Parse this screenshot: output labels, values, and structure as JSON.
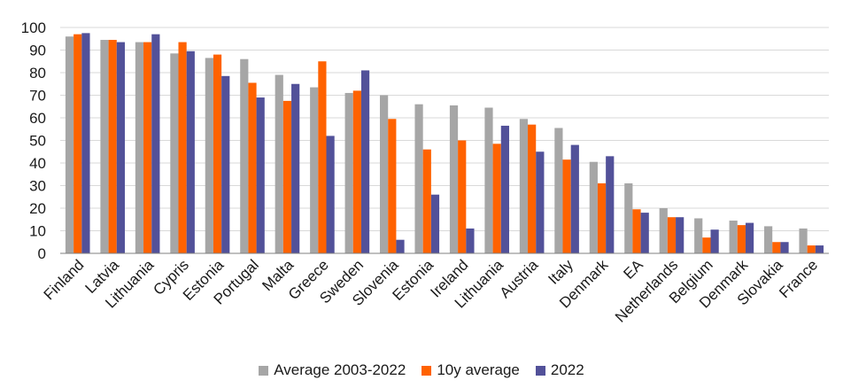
{
  "chart_data": {
    "type": "bar",
    "title": "",
    "xlabel": "",
    "ylabel": "",
    "ylim": [
      0,
      100
    ],
    "yticks": [
      0,
      10,
      20,
      30,
      40,
      50,
      60,
      70,
      80,
      90,
      100
    ],
    "grid": true,
    "legend_position": "bottom",
    "categories": [
      "Finland",
      "Latvia",
      "Lithuania",
      "Cypris",
      "Estonia",
      "Portugal",
      "Malta",
      "Greece",
      "Sweden",
      "Slovenia",
      "Estonia",
      "Ireland",
      "Lithuania",
      "Austria",
      "Italy",
      "Denmark",
      "EA",
      "Netherlands",
      "Belgium",
      "Denmark",
      "Slovakia",
      "France"
    ],
    "series": [
      {
        "name": "Average 2003-2022",
        "color": "#a6a6a6",
        "values": [
          96,
          94.5,
          93.5,
          88.5,
          86.5,
          86,
          79,
          73.5,
          71,
          70,
          66,
          65.5,
          64.5,
          59.5,
          55.5,
          40.5,
          31,
          20,
          15.5,
          14.5,
          12,
          11
        ]
      },
      {
        "name": "10y average",
        "color": "#ff6200",
        "values": [
          97,
          94.5,
          93.5,
          93.5,
          88,
          75.5,
          67.5,
          85,
          72,
          59.5,
          46,
          50,
          48.5,
          57,
          41.5,
          31,
          19.5,
          16,
          7,
          12.5,
          5,
          3.5
        ]
      },
      {
        "name": "2022",
        "color": "#525199",
        "values": [
          97.5,
          93.5,
          97,
          89.5,
          78.5,
          69,
          75,
          52,
          81,
          6,
          26,
          11,
          56.5,
          45,
          48,
          43,
          18,
          16,
          10.5,
          13.5,
          5,
          3.5
        ]
      }
    ]
  }
}
